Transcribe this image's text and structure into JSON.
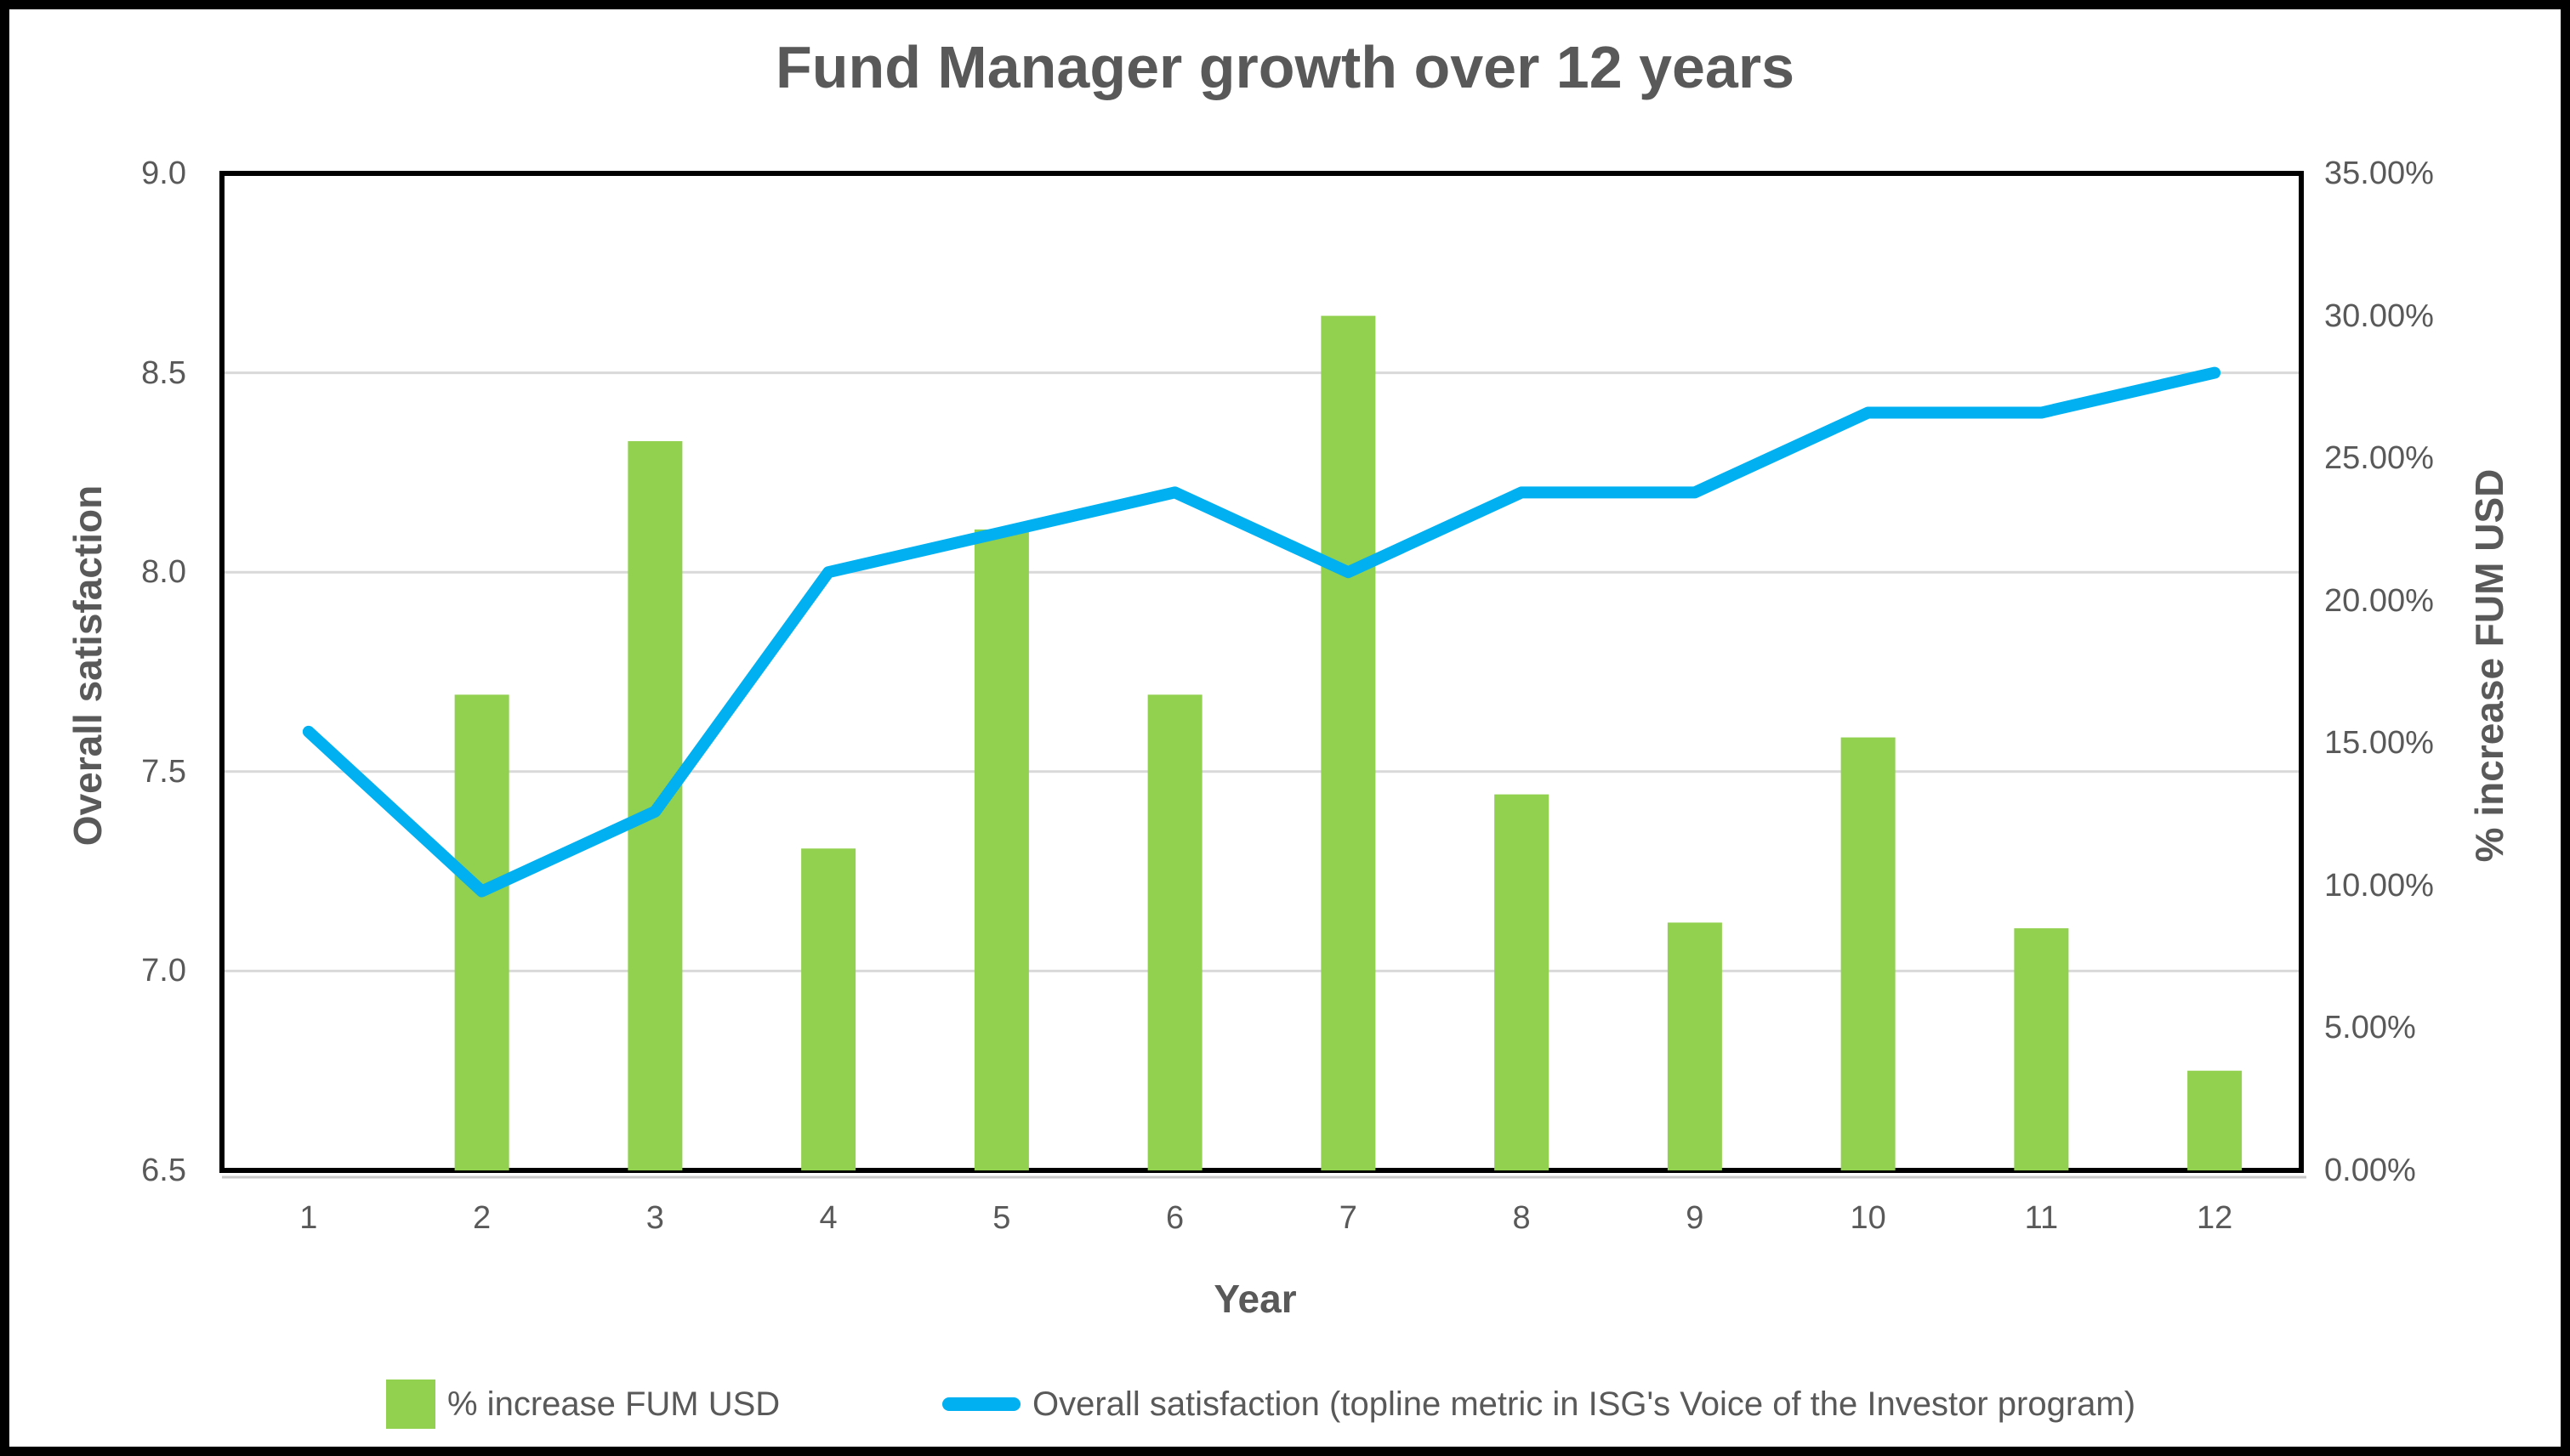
{
  "title": "Fund Manager growth over 12 years",
  "chart_data": {
    "type": "combo: bar + line, dual y-axes",
    "categories": [
      "1",
      "2",
      "3",
      "4",
      "5",
      "6",
      "7",
      "8",
      "9",
      "10",
      "11",
      "12"
    ],
    "series": [
      {
        "name": "% increase FUM USD",
        "type": "bar",
        "axis": "right",
        "color": "#92D050",
        "values": [
          0,
          16.7,
          25.6,
          11.3,
          22.5,
          16.7,
          30,
          13.2,
          8.7,
          15.2,
          8.5,
          3.5
        ]
      },
      {
        "name": "Overall satisfaction (topline metric in ISG's Voice of the Investor program)",
        "type": "line",
        "axis": "left",
        "color": "#00B0F0",
        "values": [
          7.6,
          7.2,
          7.4,
          8.0,
          8.1,
          8.2,
          8.0,
          8.2,
          8.2,
          8.4,
          8.4,
          8.5
        ]
      }
    ],
    "x_axis": {
      "title": "Year",
      "ticks": [
        "1",
        "2",
        "3",
        "4",
        "5",
        "6",
        "7",
        "8",
        "9",
        "10",
        "11",
        "12"
      ]
    },
    "left_axis": {
      "title": "Overall satisfaction",
      "min": 6.5,
      "max": 9.0,
      "step": 0.5,
      "ticks": [
        "9.0",
        "8.5",
        "8.0",
        "7.5",
        "7.0",
        "6.5"
      ]
    },
    "right_axis": {
      "title": "% increase FUM USD",
      "min": 0,
      "max": 35,
      "step": 5,
      "ticks": [
        "35.00%",
        "30.00%",
        "25.00%",
        "20.00%",
        "15.00%",
        "10.00%",
        "5.00%",
        "0.00%"
      ]
    },
    "grid": {
      "horizontal": true,
      "color": "#D9D9D9"
    },
    "legend_position": "bottom"
  },
  "legend": {
    "items": [
      {
        "label": "% increase FUM USD",
        "marker": "square"
      },
      {
        "label": "Overall satisfaction (topline metric in ISG's Voice of the Investor program)",
        "marker": "line"
      }
    ]
  },
  "colors": {
    "bar_green": "#92D050",
    "line_blue": "#00B0F0",
    "text_gray": "#595959",
    "gridline": "#D9D9D9",
    "axis_black": "#000000",
    "background": "#FFFFFF",
    "outer_frame": "#000000"
  }
}
